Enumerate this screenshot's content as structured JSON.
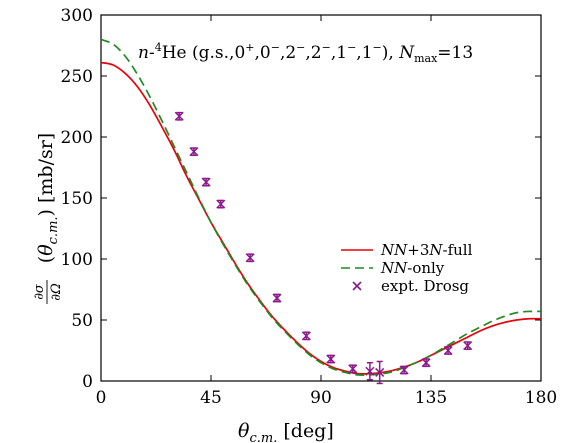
{
  "chart_data": {
    "type": "line",
    "title": "n-⁴He (g.s.,0⁺,0⁻,2⁻,2⁻,1⁻,1⁻), Nmax=13",
    "xlabel": "θc.m. [deg]",
    "ylabel": "∂σ/∂Ω(θc.m.) [mb/sr]",
    "xlim": [
      0,
      180
    ],
    "ylim": [
      0,
      300
    ],
    "xticks": [
      0,
      45,
      90,
      135,
      180
    ],
    "yticks": [
      0,
      50,
      100,
      150,
      200,
      250,
      300
    ],
    "legend_position": "right",
    "series": [
      {
        "name": "NN+3N-full",
        "style": "solid",
        "color": "#e8000b",
        "x": [
          0,
          5,
          10,
          15,
          20,
          25,
          30,
          35,
          40,
          45,
          50,
          55,
          60,
          65,
          70,
          75,
          80,
          85,
          90,
          95,
          100,
          105,
          110,
          115,
          120,
          125,
          130,
          135,
          140,
          145,
          150,
          155,
          160,
          165,
          170,
          175,
          180
        ],
        "y": [
          261,
          259,
          252,
          241,
          226,
          208,
          189,
          168,
          149,
          130,
          113,
          96,
          80,
          66,
          53,
          42,
          32,
          23,
          16,
          11,
          8,
          6,
          6,
          7,
          9,
          12,
          16,
          21,
          26,
          31,
          36,
          41,
          45,
          48,
          50,
          51,
          51
        ]
      },
      {
        "name": "NN-only",
        "style": "dashed",
        "color": "#1f8a1f",
        "x": [
          0,
          5,
          10,
          15,
          20,
          25,
          30,
          35,
          40,
          45,
          50,
          55,
          60,
          65,
          70,
          75,
          80,
          85,
          90,
          95,
          100,
          105,
          110,
          115,
          120,
          125,
          130,
          135,
          140,
          145,
          150,
          155,
          160,
          165,
          170,
          175,
          180
        ],
        "y": [
          280,
          276,
          266,
          251,
          233,
          213,
          192,
          171,
          150,
          130,
          112,
          95,
          79,
          65,
          52,
          41,
          31,
          22,
          15,
          10,
          7,
          5,
          5,
          6,
          8,
          12,
          16,
          21,
          27,
          33,
          39,
          44,
          49,
          53,
          56,
          57,
          57
        ]
      },
      {
        "name": "expt. Drosg",
        "style": "marker",
        "color": "#8b1a8b",
        "x": [
          32,
          38,
          43,
          49,
          61,
          72,
          84,
          94,
          103,
          110,
          114,
          124,
          133,
          142,
          150
        ],
        "y": [
          217,
          188,
          163,
          145,
          101,
          68,
          37,
          18,
          10,
          8,
          7,
          9,
          15,
          25,
          29
        ],
        "yerr": [
          3,
          3,
          3,
          3,
          3,
          3,
          3,
          3,
          3,
          7,
          9,
          3,
          3,
          3,
          3
        ]
      }
    ]
  }
}
